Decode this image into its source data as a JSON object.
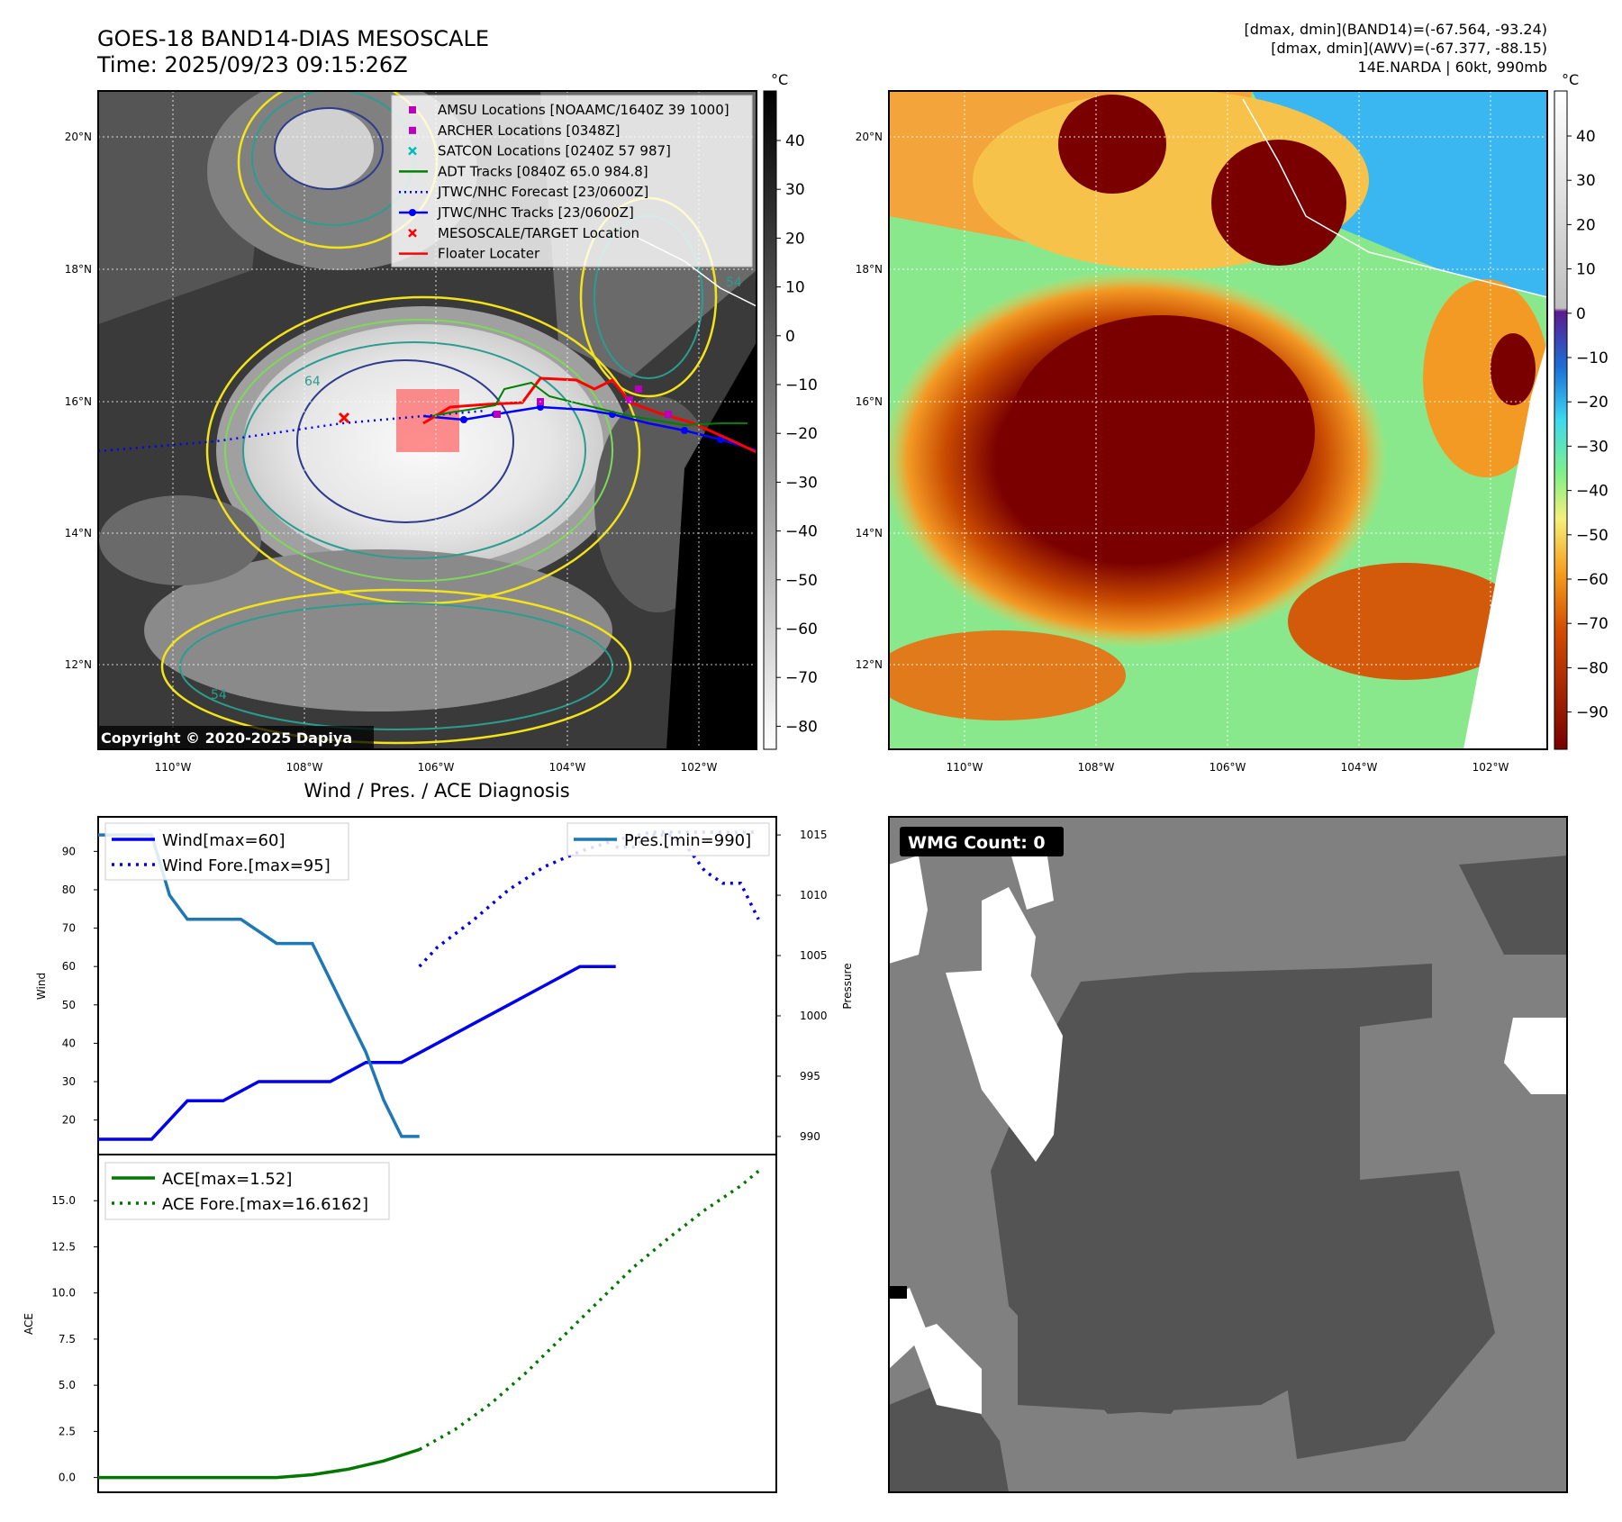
{
  "header": {
    "title_line1": "GOES-18 BAND14-DIAS MESOSCALE",
    "title_line2": "Time: 2025/09/23 09:15:26Z",
    "stats_line1": "[dmax, dmin](BAND14)=(-67.564, -93.24)",
    "stats_line2": "[dmax, dmin](AWV)=(-67.377, -88.15)",
    "stats_line3": "14E.NARDA | 60kt, 990mb"
  },
  "colors": {
    "wind": "#0000ee",
    "pressure": "#1f77b4",
    "ace": "#007700",
    "target": "#ff0000",
    "track": "#0000ff",
    "adt": "#008000",
    "satcon": "#00bbbb",
    "amsu": "#bb00bb"
  },
  "map_ir": {
    "unit_label": "°C",
    "copyright": "Copyright © 2020-2025 Dapiya",
    "lat_ticks": [
      "20°N",
      "18°N",
      "16°N",
      "14°N",
      "12°N"
    ],
    "lon_ticks": [
      "110°W",
      "108°W",
      "106°W",
      "104°W",
      "102°W"
    ],
    "colorbar_ticks": [
      "40",
      "30",
      "20",
      "10",
      "0",
      "−10",
      "−20",
      "−30",
      "−40",
      "−50",
      "−60",
      "−70",
      "−80"
    ],
    "contour_labels": [
      "64",
      "54",
      "54"
    ],
    "legend": [
      {
        "label": "AMSU Locations [NOAAMC/1640Z 39 1000]",
        "marker": "square",
        "color": "#bb00bb"
      },
      {
        "label": "ARCHER Locations [0348Z]",
        "marker": "square",
        "color": "#bb00bb"
      },
      {
        "label": "SATCON Locations [0240Z 57 987]",
        "marker": "x",
        "color": "#00bbbb"
      },
      {
        "label": "ADT Tracks [0840Z 65.0 984.8]",
        "marker": "line",
        "color": "#008000"
      },
      {
        "label": "JTWC/NHC Forecast [23/0600Z]",
        "marker": "dotted",
        "color": "#0000ff"
      },
      {
        "label": "JTWC/NHC Tracks [23/0600Z]",
        "marker": "dotline",
        "color": "#0000ff"
      },
      {
        "label": "MESOSCALE/TARGET Location",
        "marker": "x",
        "color": "#ff0000"
      },
      {
        "label": "Floater Locater",
        "marker": "line",
        "color": "#ff0000"
      }
    ]
  },
  "map_awv": {
    "unit_label": "°C",
    "lat_ticks": [
      "20°N",
      "18°N",
      "16°N",
      "14°N",
      "12°N"
    ],
    "lon_ticks": [
      "110°W",
      "108°W",
      "106°W",
      "104°W",
      "102°W"
    ],
    "colorbar_ticks": [
      "40",
      "30",
      "20",
      "10",
      "0",
      "−10",
      "−20",
      "−30",
      "−40",
      "−50",
      "−60",
      "−70",
      "−80",
      "−90"
    ]
  },
  "wmg": {
    "label": "WMG Count: 0"
  },
  "chart_data": [
    {
      "type": "line",
      "title": "Wind / Pres. / ACE Diagnosis",
      "ylabel": "Wind",
      "y2label": "Pressure",
      "ylim": [
        11,
        99
      ],
      "y2lim": [
        988.5,
        1016.5
      ],
      "xlim": [
        0,
        38
      ],
      "yticks": [
        20,
        30,
        40,
        50,
        60,
        70,
        80,
        90
      ],
      "y2ticks": [
        990,
        995,
        1000,
        1005,
        1010,
        1015
      ],
      "series": [
        {
          "name": "Wind[max=60]",
          "style": "solid",
          "color": "#0000ee",
          "x": [
            0,
            3,
            5,
            7,
            9,
            11,
            13,
            15,
            17,
            19,
            21,
            23,
            25,
            27,
            29
          ],
          "y": [
            15,
            15,
            25,
            25,
            30,
            30,
            30,
            35,
            35,
            40,
            45,
            50,
            55,
            60,
            60
          ]
        },
        {
          "name": "Wind Fore.[max=95]",
          "style": "dotted",
          "color": "#0000ee",
          "x": [
            18,
            19,
            21,
            23,
            25,
            27,
            29,
            31,
            33,
            35,
            37
          ],
          "y": [
            60,
            65,
            72,
            80,
            86,
            90,
            93,
            95,
            95,
            95,
            95
          ]
        },
        {
          "name": "Pres.[min=990]",
          "style": "solid",
          "color": "#1f77b4",
          "axis": "right",
          "x": [
            0,
            3,
            4,
            5,
            6,
            8,
            10,
            12,
            13,
            14,
            15,
            16,
            17,
            18
          ],
          "y": [
            1015,
            1015,
            1010,
            1008,
            1008,
            1008,
            1006,
            1006,
            1003,
            1000,
            997,
            993,
            990,
            990
          ]
        },
        {
          "name": "",
          "style": "dotted",
          "color": "#0000ee",
          "axis": "right",
          "x": [
            29,
            30,
            31,
            32,
            33,
            34,
            35,
            36,
            37
          ],
          "y": [
            1014,
            1014,
            1015,
            1015,
            1014,
            1012,
            1011,
            1011,
            1008
          ]
        }
      ]
    },
    {
      "type": "line",
      "ylabel": "ACE",
      "ylim": [
        -0.8,
        17.5
      ],
      "xlim": [
        0,
        38
      ],
      "yticks": [
        0.0,
        2.5,
        5.0,
        7.5,
        10.0,
        12.5,
        15.0
      ],
      "series": [
        {
          "name": "ACE[max=1.52]",
          "style": "solid",
          "color": "#007700",
          "x": [
            0,
            4,
            8,
            10,
            12,
            14,
            16,
            18
          ],
          "y": [
            0,
            0,
            0,
            0,
            0.15,
            0.45,
            0.9,
            1.52
          ]
        },
        {
          "name": "ACE Fore.[max=16.6162]",
          "style": "dotted",
          "color": "#007700",
          "x": [
            18,
            20,
            22,
            24,
            26,
            28,
            30,
            32,
            34,
            36,
            37
          ],
          "y": [
            1.52,
            2.6,
            4.0,
            5.7,
            7.6,
            9.5,
            11.4,
            13.0,
            14.5,
            15.8,
            16.6
          ]
        }
      ]
    }
  ]
}
